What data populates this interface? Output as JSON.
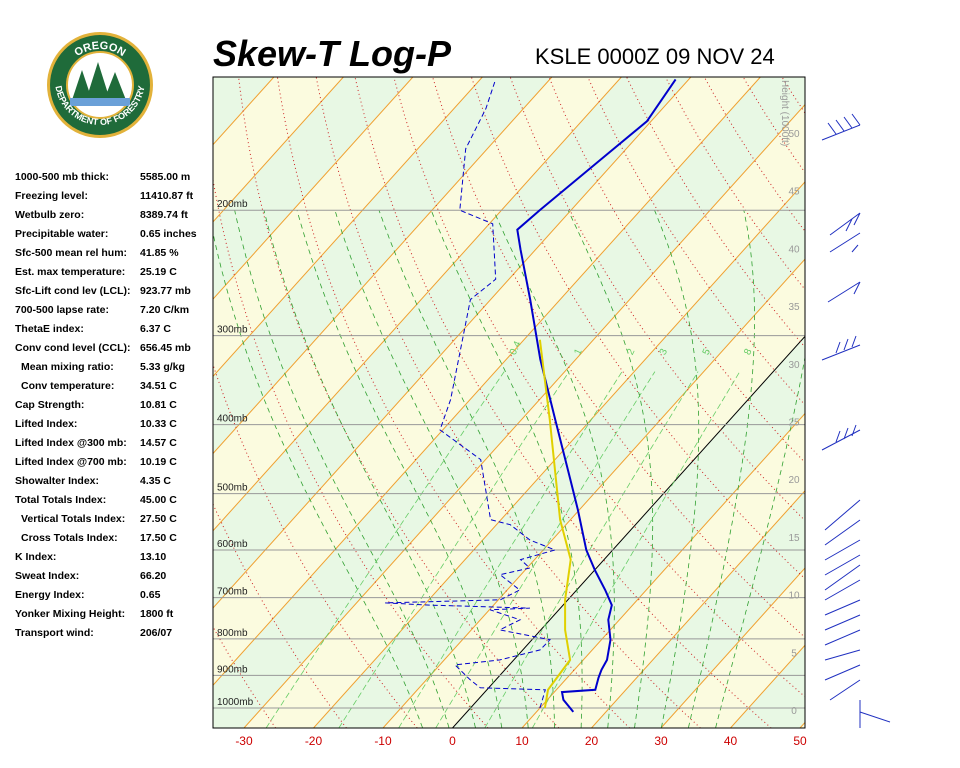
{
  "logo": {
    "top": "OREGON",
    "bottom": "DEPARTMENT OF FORESTRY"
  },
  "header": {
    "title": "Skew-T Log-P",
    "station": "KSLE 0000Z 09 NOV 24"
  },
  "stats": [
    [
      "1000-500 mb thick:",
      "5585.00 m"
    ],
    [
      "Freezing level:",
      "11410.87 ft"
    ],
    [
      "Wetbulb zero:",
      "8389.74 ft"
    ],
    [
      "Precipitable water:",
      "0.65 inches"
    ],
    [
      "Sfc-500 mean rel hum:",
      "41.85 %"
    ],
    [
      "Est. max temperature:",
      "25.19 C"
    ],
    [
      "Sfc-Lift cond lev (LCL):",
      "923.77 mb"
    ],
    [
      "700-500 lapse rate:",
      "7.20 C/km"
    ],
    [
      "ThetaE index:",
      "6.37 C"
    ],
    [
      "Conv cond level (CCL):",
      "656.45 mb"
    ],
    [
      "Mean mixing ratio:",
      "5.33 g/kg"
    ],
    [
      "Conv temperature:",
      "34.51 C"
    ],
    [
      "Cap Strength:",
      "10.81 C"
    ],
    [
      "Lifted Index:",
      "10.33 C"
    ],
    [
      "Lifted Index @300 mb:",
      "14.57 C"
    ],
    [
      "Lifted Index @700 mb:",
      "10.19 C"
    ],
    [
      "Showalter Index:",
      "4.35 C"
    ],
    [
      "Total Totals Index:",
      "45.00 C"
    ],
    [
      "Vertical Totals Index:",
      "27.50 C"
    ],
    [
      "Cross Totals Index:",
      "17.50 C"
    ],
    [
      "K Index:",
      "13.10"
    ],
    [
      "Sweat Index:",
      "66.20"
    ],
    [
      "Energy Index:",
      "0.65"
    ],
    [
      "Yonker Mixing Height:",
      "1800 ft"
    ],
    [
      "Transport wind:",
      "206/07"
    ]
  ],
  "chart_data": {
    "type": "skewt",
    "xlim": [
      -34.46,
      50.72
    ],
    "xticks": [
      -30,
      -20,
      -10,
      0,
      10,
      20,
      30,
      40,
      50
    ],
    "ylim": [
      1067,
      130
    ],
    "log_y": true,
    "yticks": [
      {
        "value": 1000,
        "label": "1000mb"
      },
      {
        "value": 900,
        "label": "900mb"
      },
      {
        "value": 800,
        "label": "800mb"
      },
      {
        "value": 700,
        "label": "700mb"
      },
      {
        "value": 600,
        "label": "600mb"
      },
      {
        "value": 500,
        "label": "500mb"
      },
      {
        "value": 400,
        "label": "400mb"
      },
      {
        "value": 300,
        "label": "300mb"
      },
      {
        "value": 200,
        "label": "200mb"
      }
    ],
    "y2_label": "Height (1000ft)",
    "y2lim": [
      -1.56,
      54.85
    ],
    "y2ticks": [
      0,
      5,
      10,
      15,
      20,
      25,
      30,
      35,
      40,
      45,
      50
    ],
    "mixing_ratio_lines": [
      0.4,
      1,
      2,
      3,
      5,
      8
    ],
    "series": [
      {
        "color": "#0000cc",
        "dashed": false,
        "pressure": [
          1013,
          974,
          950,
          943,
          907,
          884,
          856,
          802,
          752,
          717,
          683,
          640,
          600,
          527,
          478,
          394,
          324,
          267,
          227,
          213,
          200,
          170,
          150,
          131
        ],
        "temperature": [
          15.3,
          12.3,
          11.1,
          15.6,
          14.5,
          13.9,
          13.4,
          11.3,
          8.4,
          7.0,
          4.1,
          0.0,
          -3.8,
          -10.2,
          -15.2,
          -25.1,
          -35.1,
          -44.3,
          -52.2,
          -55.2,
          -54.5,
          -52.3,
          -50.6,
          -51.9
        ]
      },
      {
        "color": "#0000cc",
        "dashed": true,
        "pressure": [
          1000,
          943,
          937,
          913,
          870,
          856,
          829,
          802,
          777,
          752,
          728,
          724,
          717,
          712,
          705,
          683,
          650,
          636,
          619,
          600,
          581,
          553,
          544,
          448,
          407,
          369,
          267,
          250,
          209,
          200,
          164,
          144,
          131
        ],
        "temperature": [
          10.0,
          8.4,
          -1.2,
          -3.7,
          -7.8,
          -2.0,
          2.5,
          2.6,
          -5.9,
          -4.3,
          -9.9,
          -4.4,
          -19.2,
          -25.9,
          -9.7,
          -8.2,
          -13.0,
          -9.6,
          -12.0,
          -8.3,
          -13.2,
          -18.0,
          -21.5,
          -30.7,
          -40.4,
          -42.8,
          -52.9,
          -51.9,
          -59.5,
          -66.0,
          -73.1,
          -75.4,
          -77.8
        ]
      },
      {
        "color": "#e0d000",
        "dashed": false,
        "pressure": [
          1000,
          943,
          856,
          777,
          705,
          619,
          544,
          394,
          304
        ],
        "temperature": [
          10.7,
          8.8,
          8.1,
          3.5,
          -0.4,
          -4.8,
          -11.5,
          -25.9,
          -37.7
        ]
      }
    ]
  }
}
